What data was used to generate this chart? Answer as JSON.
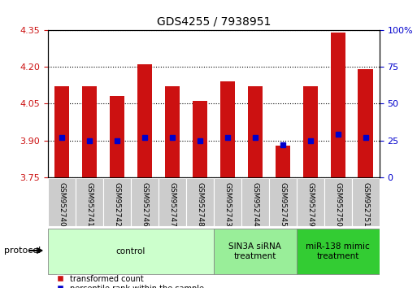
{
  "title": "GDS4255 / 7938951",
  "samples": [
    "GSM952740",
    "GSM952741",
    "GSM952742",
    "GSM952746",
    "GSM952747",
    "GSM952748",
    "GSM952743",
    "GSM952744",
    "GSM952745",
    "GSM952749",
    "GSM952750",
    "GSM952751"
  ],
  "transformed_count": [
    4.12,
    4.12,
    4.08,
    4.21,
    4.12,
    4.06,
    4.14,
    4.12,
    3.88,
    4.12,
    4.34,
    4.19
  ],
  "percentile_rank": [
    27,
    25,
    25,
    27,
    27,
    25,
    27,
    27,
    22,
    25,
    29,
    27
  ],
  "bar_bottom": 3.75,
  "ylim": [
    3.75,
    4.35
  ],
  "y2lim": [
    0,
    100
  ],
  "yticks": [
    3.75,
    3.9,
    4.05,
    4.2,
    4.35
  ],
  "y2ticks": [
    0,
    25,
    50,
    75,
    100
  ],
  "bar_color": "#cc1111",
  "dot_color": "#0000cc",
  "bar_width": 0.55,
  "groups": [
    {
      "label": "control",
      "start": 0,
      "end": 5,
      "color": "#ccffcc"
    },
    {
      "label": "SIN3A siRNA\ntreatment",
      "start": 6,
      "end": 8,
      "color": "#99ee99"
    },
    {
      "label": "miR-138 mimic\ntreatment",
      "start": 9,
      "end": 11,
      "color": "#33cc33"
    }
  ],
  "protocol_label": "protocol",
  "legend_red_label": "transformed count",
  "legend_blue_label": "percentile rank within the sample",
  "sample_box_color": "#cccccc",
  "tick_label_color_left": "#cc1111",
  "tick_label_color_right": "#0000cc"
}
